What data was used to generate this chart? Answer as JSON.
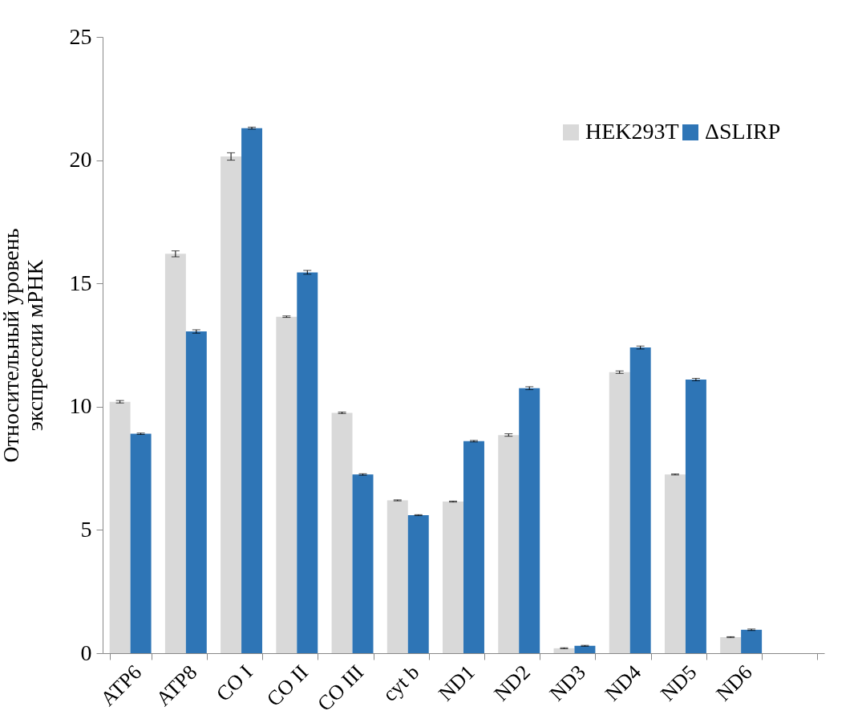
{
  "chart_data": {
    "type": "bar",
    "ylabel": "Относительный уровень экспрессии мРНК",
    "categories": [
      "ATP6",
      "ATP8",
      "CO I",
      "CO II",
      "CO III",
      "cyt b",
      "ND1",
      "ND2",
      "ND3",
      "ND4",
      "ND5",
      "ND6",
      null
    ],
    "series": [
      {
        "name": "HEK293T",
        "color": "#d9d9d9",
        "values": [
          10.2,
          16.2,
          20.15,
          13.65,
          9.75,
          6.2,
          6.15,
          8.85,
          0.2,
          11.4,
          7.25,
          0.65,
          null
        ],
        "errors": [
          0.05,
          0.12,
          0.15,
          0.03,
          0.03,
          0.02,
          0.02,
          0.05,
          0.02,
          0.05,
          0.02,
          0.02,
          null
        ]
      },
      {
        "name": "ΔSLIRP",
        "color": "#2e75b6",
        "values": [
          8.9,
          13.05,
          21.3,
          15.45,
          7.25,
          5.6,
          8.6,
          10.75,
          0.3,
          12.4,
          11.1,
          0.95,
          null
        ],
        "errors": [
          0.03,
          0.07,
          0.04,
          0.08,
          0.03,
          0.02,
          0.03,
          0.06,
          0.02,
          0.06,
          0.05,
          0.03,
          null
        ]
      }
    ],
    "ylim": [
      0,
      25
    ],
    "yticks": [
      0,
      5,
      10,
      15,
      20,
      25
    ],
    "grid": false,
    "legend": "top right"
  }
}
